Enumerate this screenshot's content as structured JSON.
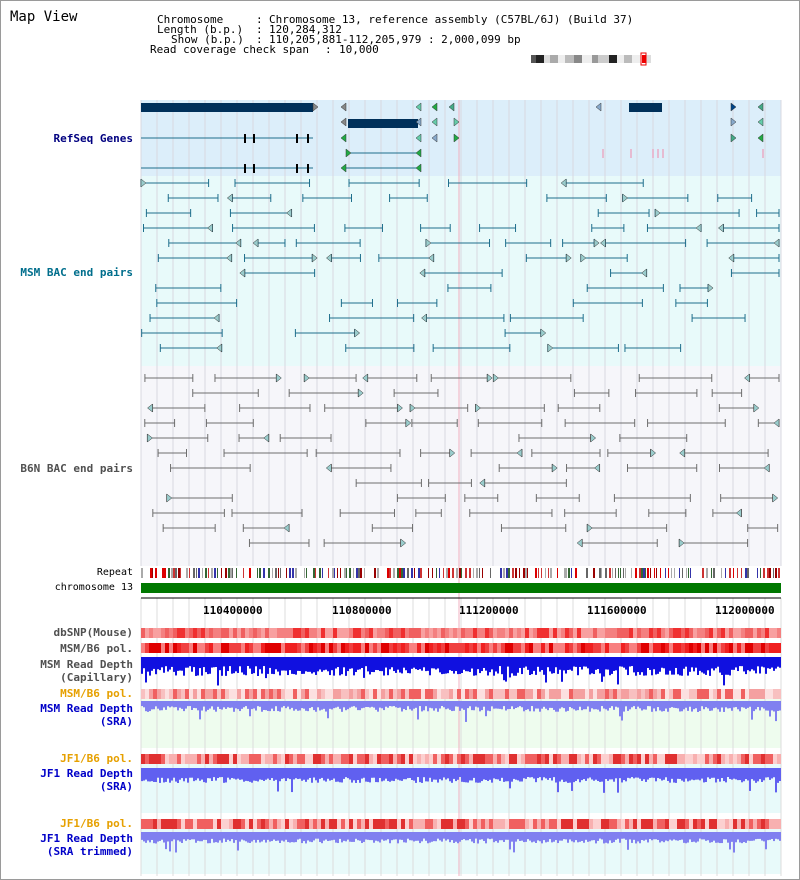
{
  "header": {
    "title": "Map View",
    "chromosome_label": "Chromosome",
    "chromosome_value": "Chromosome 13, reference assembly (C57BL/6J) (Build 37)",
    "length_label": "Length (b.p.)",
    "length_value": "120,284,312",
    "show_label": "Show (b.p.)",
    "show_value": "110,205,881-112,205,979 : 2,000,099 bp",
    "coverage_label": "Read coverage check span",
    "coverage_value": "10,000"
  },
  "tracks": {
    "refseq": "RefSeq Genes",
    "msm_bac": "MSM BAC end pairs",
    "b6n_bac": "B6N BAC end pairs",
    "repeat": "Repeat",
    "chromosome": "chromosome 13",
    "dbsnp": "dbSNP(Mouse)",
    "msm_b6_pol": "MSM/B6 pol.",
    "msm_rd_cap_1": "MSM Read Depth",
    "msm_rd_cap_2": "(Capillary)",
    "msm_b6_pol_2": "MSM/B6 pol.",
    "msm_rd_sra_1": "MSM Read Depth",
    "msm_rd_sra_2": "(SRA)",
    "jf1_b6_pol": "JF1/B6 pol.",
    "jf1_rd_sra_1": "JF1 Read Depth",
    "jf1_rd_sra_2": "(SRA)",
    "jf1_b6_pol_2": "JF1/B6 pol.",
    "jf1_rd_trim_1": "JF1 Read Depth",
    "jf1_rd_trim_2": "(SRA trimmed)"
  },
  "axis": {
    "ticks": [
      "110400000",
      "110800000",
      "111200000",
      "111600000",
      "112000000"
    ]
  },
  "colors": {
    "refseq_bg": "#dceefa",
    "msm_bg": "#e8fafa",
    "b6n_bg": "#f6f6fa",
    "gene": "#00305a",
    "msm_line": "#1e6e8c",
    "b6n_line": "#6e6e6e",
    "chromosome": "#007800",
    "label_navy": "#000080",
    "label_teal": "#006e8c",
    "label_gray": "#505050",
    "label_orange": "#e6a000",
    "label_blue": "#0000c8"
  }
}
